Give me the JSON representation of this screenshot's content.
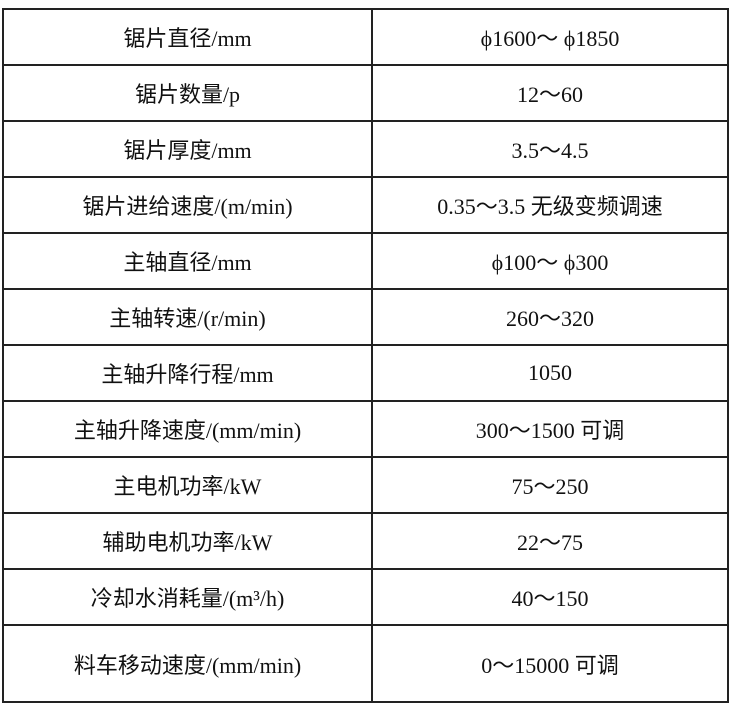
{
  "table": {
    "rows": [
      {
        "param": "锯片直径/mm",
        "value": "ϕ1600～ ϕ1850"
      },
      {
        "param": "锯片数量/p",
        "value": "12～60"
      },
      {
        "param": "锯片厚度/mm",
        "value": "3.5～4.5"
      },
      {
        "param": "锯片进给速度/(m/min)",
        "value": "0.35～3.5 无级变频调速"
      },
      {
        "param": "主轴直径/mm",
        "value": "ϕ100～ ϕ300"
      },
      {
        "param": "主轴转速/(r/min)",
        "value": "260～320"
      },
      {
        "param": "主轴升降行程/mm",
        "value": "1050"
      },
      {
        "param": "主轴升降速度/(mm/min)",
        "value": "300～1500 可调"
      },
      {
        "param": "主电机功率/kW",
        "value": "75～250"
      },
      {
        "param": "辅助电机功率/kW",
        "value": "22～75"
      },
      {
        "param": "冷却水消耗量/(m³/h)",
        "value": "40～150"
      },
      {
        "param": "料车移动速度/(mm/min)",
        "value": "0～15000 可调"
      }
    ]
  }
}
